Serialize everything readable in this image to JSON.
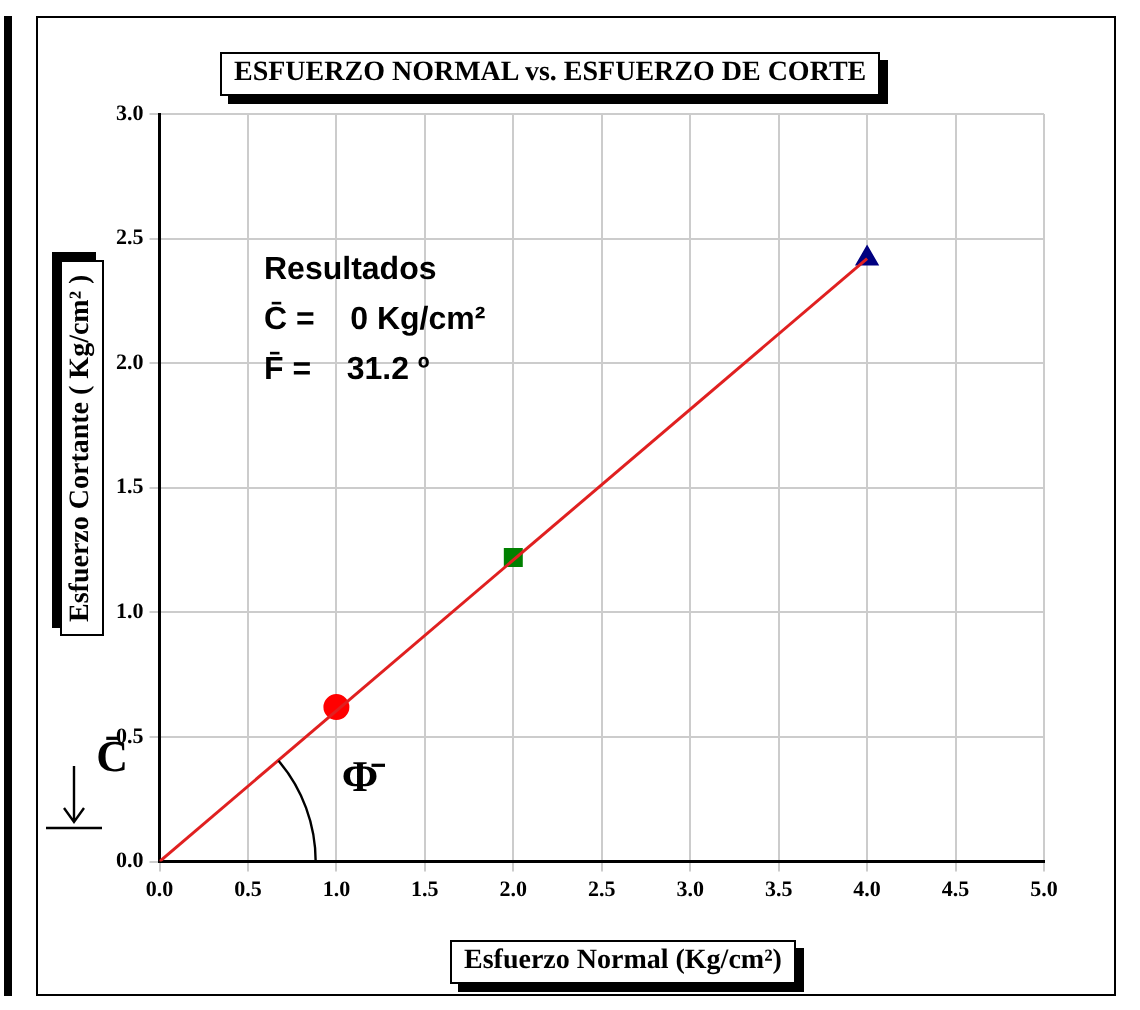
{
  "chart_data": {
    "type": "scatter",
    "title": "ESFUERZO NORMAL  vs. ESFUERZO DE CORTE",
    "xlabel": "Esfuerzo Normal (Kg/cm²)",
    "ylabel": "Esfuerzo Cortante ( Kg/cm² )",
    "annotations": [
      "Resultados",
      "C̄ =    0 Kg/cm²",
      "F̄ =    31.2 º",
      "C̄",
      "Φ̄"
    ],
    "series": [
      {
        "type": "line",
        "x": [
          0,
          4
        ],
        "values": [
          0,
          2.42
        ],
        "color": "#e02020",
        "marker": "none"
      },
      {
        "x": [
          1
        ],
        "values": [
          0.62
        ],
        "color": "#ff0000",
        "marker": "circle"
      },
      {
        "x": [
          2
        ],
        "values": [
          1.22
        ],
        "color": "#008000",
        "marker": "square"
      },
      {
        "x": [
          4
        ],
        "values": [
          2.42
        ],
        "color": "#000080",
        "marker": "triangle"
      }
    ],
    "xlim": [
      0,
      5
    ],
    "ylim": [
      0,
      3
    ],
    "xticks": [
      {
        "value": 0,
        "label": "0.0"
      },
      {
        "value": 0.5,
        "label": "0.5"
      },
      {
        "value": 1,
        "label": "1.0"
      },
      {
        "value": 1.5,
        "label": "1.5"
      },
      {
        "value": 2,
        "label": "2.0"
      },
      {
        "value": 2.5,
        "label": "2.5"
      },
      {
        "value": 3,
        "label": "3.0"
      },
      {
        "value": 3.5,
        "label": "3.5"
      },
      {
        "value": 4,
        "label": "4.0"
      },
      {
        "value": 4.5,
        "label": "4.5"
      },
      {
        "value": 5,
        "label": "5.0"
      }
    ],
    "yticks": [
      {
        "value": 0,
        "label": "0.0"
      },
      {
        "value": 0.5,
        "label": "0.5"
      },
      {
        "value": 1,
        "label": "1.0"
      },
      {
        "value": 1.5,
        "label": "1.5"
      },
      {
        "value": 2,
        "label": "2.0"
      },
      {
        "value": 2.5,
        "label": "2.5"
      },
      {
        "value": 3,
        "label": "3.0"
      }
    ],
    "grid": true
  }
}
